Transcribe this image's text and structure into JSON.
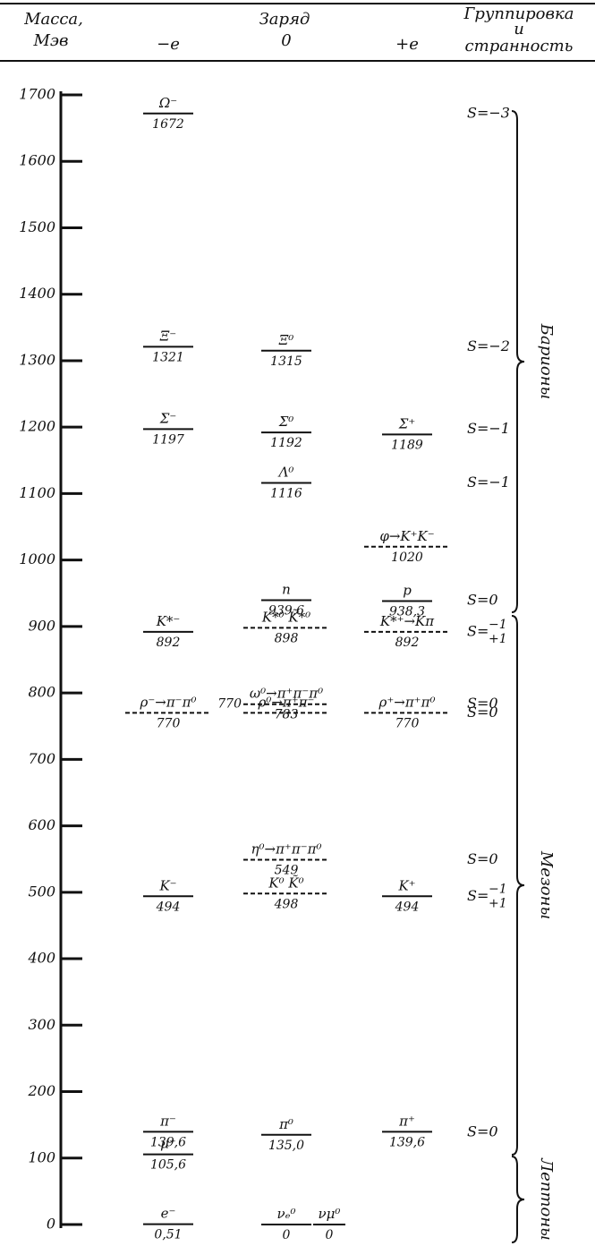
{
  "chart_data": {
    "type": "levels",
    "y_label": [
      "Масса,",
      "Мэв"
    ],
    "x_label": "Заряд",
    "group_label": [
      "Группировка",
      "и",
      "странность"
    ],
    "ylim": [
      0,
      1700
    ],
    "yticks": [
      0,
      100,
      200,
      300,
      400,
      500,
      600,
      700,
      800,
      900,
      1000,
      1100,
      1200,
      1300,
      1400,
      1500,
      1600,
      1700
    ],
    "series": [
      {
        "name": "−е",
        "levels": [
          {
            "name": "Ω⁻",
            "value": 1672
          },
          {
            "name": "Ξ⁻",
            "value": 1321
          },
          {
            "name": "Σ⁻",
            "value": 1197
          },
          {
            "name": "K*⁻",
            "value": 892
          },
          {
            "name": "ρ⁻→π⁻π⁰",
            "value": 770
          },
          {
            "name": "K⁻",
            "value": 494
          },
          {
            "name": "π⁻",
            "value": 139.6,
            "value_label": "139,6"
          },
          {
            "name": "μ⁻",
            "value": 105.6,
            "value_label": "105,6"
          },
          {
            "name": "e⁻",
            "value": 0.51,
            "value_label": "0,51"
          }
        ]
      },
      {
        "name": "0",
        "levels": [
          {
            "name": "Ξ⁰",
            "value": 1315
          },
          {
            "name": "Σ⁰",
            "value": 1192
          },
          {
            "name": "Λ⁰",
            "value": 1116
          },
          {
            "name": "n",
            "value": 939.6,
            "value_label": "939,6"
          },
          {
            "name": "K*⁰ K̃*⁰",
            "value": 898
          },
          {
            "name": "ω⁰→π⁺π⁻π⁰",
            "value": 783
          },
          {
            "name": "ρ⁰→π⁺π⁻",
            "value": 770
          },
          {
            "name": "η⁰→π⁺π⁻π⁰",
            "value": 549
          },
          {
            "name": "K⁰ K̃⁰",
            "value": 498
          },
          {
            "name": "π⁰",
            "value": 135.0,
            "value_label": "135,0"
          },
          {
            "name": "νₑ⁰",
            "value": 0
          },
          {
            "name": "νμ⁰",
            "value": 0
          }
        ]
      },
      {
        "name": "+е",
        "levels": [
          {
            "name": "Σ⁺",
            "value": 1189
          },
          {
            "name": "φ→K⁺K⁻",
            "value": 1020
          },
          {
            "name": "p",
            "value": 938.3,
            "value_label": "938,3"
          },
          {
            "name": "K*⁺→Kπ",
            "value": 892
          },
          {
            "name": "ρ⁺→π⁺π⁰",
            "value": 770
          },
          {
            "name": "K⁺",
            "value": 494
          },
          {
            "name": "π⁺",
            "value": 139.6,
            "value_label": "139,6"
          }
        ]
      }
    ],
    "strangeness": [
      {
        "text": "S=−3",
        "value": 1672
      },
      {
        "text": "S=−2",
        "value": 1321
      },
      {
        "text": "S=−1",
        "value": 1197
      },
      {
        "text": "S=−1",
        "value": 1116
      },
      {
        "text": "S=0",
        "value": 939
      },
      {
        "text": "S=",
        "upper": "−1",
        "lower": "+1",
        "value": 892
      },
      {
        "text": "S=0",
        "value": 783
      },
      {
        "text": "S=0",
        "value": 770
      },
      {
        "text": "S=0",
        "value": 549
      },
      {
        "text": "S=",
        "upper": "−1",
        "lower": "+1",
        "value": 494
      },
      {
        "text": "S=0",
        "value": 139
      }
    ],
    "groups": [
      "Барионы",
      "Мезоны",
      "Лептоны"
    ]
  }
}
